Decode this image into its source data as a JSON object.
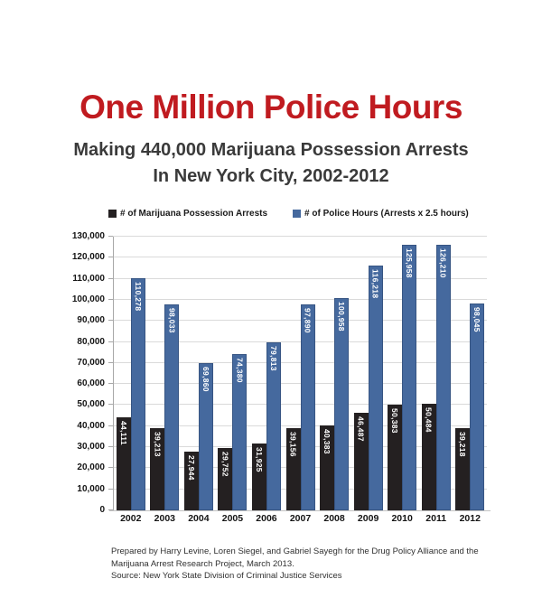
{
  "header": {
    "title": "One Million Police Hours",
    "subtitle_line1": "Making 440,000 Marijuana Possession Arrests",
    "subtitle_line2": "In New York City, 2002-2012"
  },
  "colors": {
    "title_red": "#c01b20",
    "arrests_black": "#242021",
    "hours_blue": "#45699e",
    "gridline": "#dadada"
  },
  "chart_data": {
    "type": "bar",
    "categories": [
      "2002",
      "2003",
      "2004",
      "2005",
      "2006",
      "2007",
      "2008",
      "2009",
      "2010",
      "2011",
      "2012"
    ],
    "series": [
      {
        "name": "# of Marijuana Possession Arrests",
        "color": "#242021",
        "values": [
          44111,
          39213,
          27944,
          29752,
          31925,
          39156,
          40383,
          46487,
          50383,
          50484,
          39218
        ],
        "labels": [
          "44,111",
          "39,213",
          "27,944",
          "29,752",
          "31,925",
          "39,156",
          "40,383",
          "46,487",
          "50,383",
          "50,484",
          "39,218"
        ]
      },
      {
        "name": "# of Police Hours (Arrests x 2.5 hours)",
        "color": "#45699e",
        "values": [
          110278,
          98033,
          69860,
          74380,
          79813,
          97890,
          100958,
          116218,
          125958,
          126210,
          98045
        ],
        "labels": [
          "110,278",
          "98,033",
          "69,860",
          "74,380",
          "79,813",
          "97,890",
          "100,958",
          "116,218",
          "125,958",
          "126,210",
          "98,045"
        ]
      }
    ],
    "ylim": [
      0,
      130000
    ],
    "ytick_step": 10000,
    "ytick_labels": [
      "0",
      "10,000",
      "20,000",
      "30,000",
      "40,000",
      "50,000",
      "60,000",
      "70,000",
      "80,000",
      "90,000",
      "100,000",
      "110,000",
      "120,000",
      "130,000"
    ],
    "grid": true,
    "legend_position": "top",
    "value_labels": "inside-top-vertical"
  },
  "footer": {
    "line1": "Prepared by  Harry Levine, Loren Siegel, and Gabriel Sayegh for the Drug Policy Alliance and the",
    "line2": "Marijuana Arrest Research Project, March 2013.",
    "line3": "Source: New York State Division of Criminal Justice Services"
  }
}
